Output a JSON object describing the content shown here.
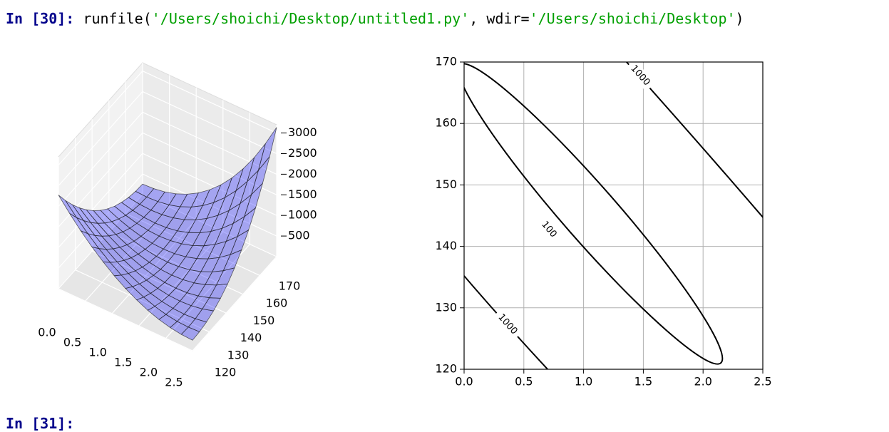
{
  "console": {
    "input": {
      "prompt_open": "In [",
      "number": "30",
      "prompt_close": "]:",
      "code": " runfile(",
      "path": "'/Users/shoichi/Desktop/untitled1.py'",
      "kw": ", wdir=",
      "wdir": "'/Users/shoichi/Desktop'",
      "end": ")"
    },
    "next_prompt": {
      "prompt_open": "In [",
      "number": "31",
      "prompt_close": "]:"
    }
  },
  "chart_data": [
    {
      "type": "surface3d",
      "color": "#0000ff",
      "xlim": [
        0,
        2.5
      ],
      "xticks": [
        {
          "value": 0,
          "label": "0.0"
        },
        {
          "value": 0.5,
          "label": "0.5"
        },
        {
          "value": 1,
          "label": "1.0"
        },
        {
          "value": 1.5,
          "label": "1.5"
        },
        {
          "value": 2,
          "label": "2.0"
        },
        {
          "value": 2.5,
          "label": "2.5"
        }
      ],
      "ylim": [
        120,
        170
      ],
      "yticks": [
        120,
        130,
        140,
        150,
        160,
        170
      ],
      "zlim": [
        0,
        3200
      ],
      "zticks": [
        500,
        1000,
        1500,
        2000,
        2500,
        3000
      ]
    },
    {
      "type": "contour",
      "grid": true,
      "color": "#000000",
      "xlim": [
        0,
        2.5
      ],
      "xticks": [
        {
          "value": 0,
          "label": "0.0"
        },
        {
          "value": 0.5,
          "label": "0.5"
        },
        {
          "value": 1,
          "label": "1.0"
        },
        {
          "value": 1.5,
          "label": "1.5"
        },
        {
          "value": 2,
          "label": "2.0"
        },
        {
          "value": 2.5,
          "label": "2.5"
        }
      ],
      "ylim": [
        120,
        170
      ],
      "yticks": [
        120,
        130,
        140,
        150,
        160,
        170
      ],
      "levels": [
        100,
        1000
      ]
    }
  ]
}
